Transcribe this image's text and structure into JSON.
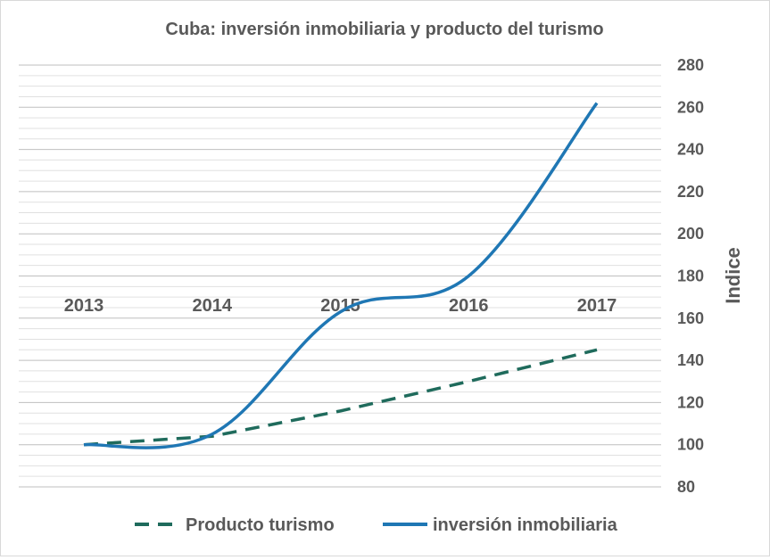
{
  "chart_data": {
    "type": "line",
    "title": "Cuba: inversión inmobiliaria y producto del turismo",
    "categories": [
      "2013",
      "2014",
      "2015",
      "2016",
      "2017"
    ],
    "ylabel": "Indice",
    "xlabel": "",
    "ylim": [
      80,
      280
    ],
    "yticks": [
      80,
      100,
      120,
      140,
      160,
      180,
      200,
      220,
      240,
      260,
      280
    ],
    "grid": true,
    "legend_position": "bottom",
    "series": [
      {
        "name": "Producto turismo",
        "style": "dashed",
        "color": "#1f6b5c",
        "values": [
          100,
          104,
          116,
          130,
          145
        ]
      },
      {
        "name": "inversión inmobiliaria",
        "style": "solid",
        "color": "#1f77b4",
        "values": [
          100,
          105,
          163,
          180,
          262
        ]
      }
    ]
  }
}
